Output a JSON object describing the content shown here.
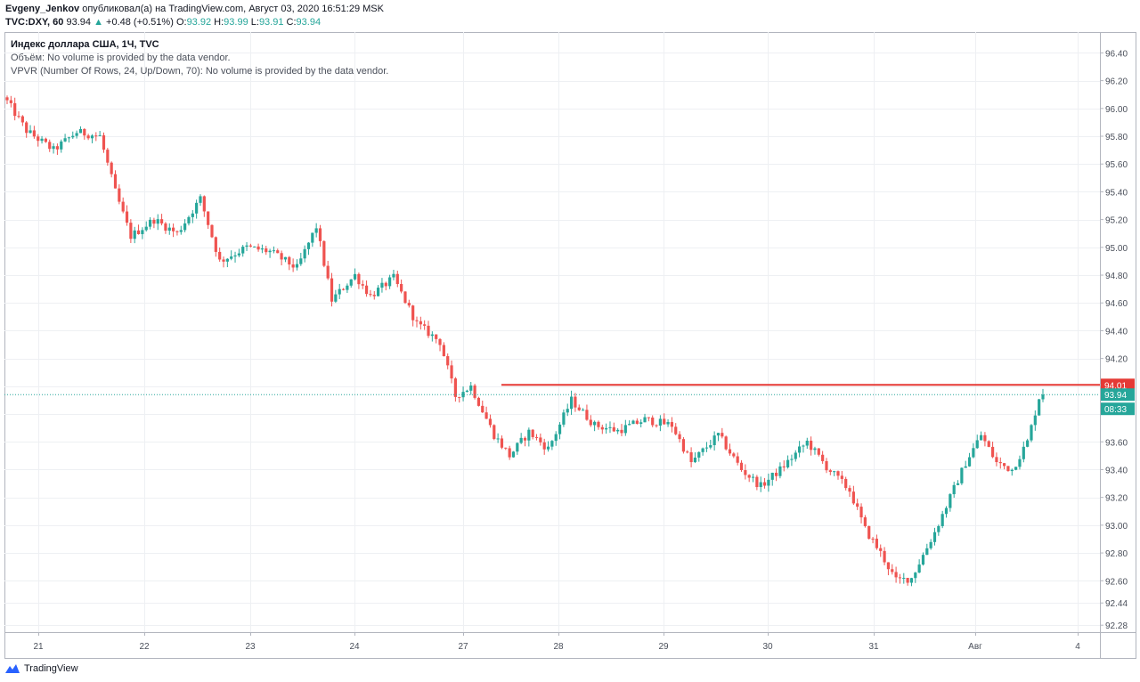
{
  "header": {
    "author": "Evgeny_Jenkov",
    "published_text": "опубликовал(а) на TradingView.com, Август 03, 2020 16:51:29 MSK",
    "symbol": "TVC:DXY, 60",
    "last": "93.94",
    "change": "+0.48 (+0.51%)",
    "o_label": "O:",
    "o_value": "93.92",
    "h_label": "H:",
    "h_value": "93.99",
    "l_label": "L:",
    "l_value": "93.91",
    "c_label": "C:",
    "c_value": "93.94"
  },
  "legend": {
    "title": "Индекс доллара США, 1Ч, TVC",
    "volume_line": "Объём: No volume is provided by the data vendor.",
    "vpvr_line": "VPVR (Number Of Rows, 24, Up/Down, 70): No volume is provided by the data vendor."
  },
  "footer": {
    "brand": "TradingView"
  },
  "colors": {
    "up": "#26a69a",
    "down": "#ef5350",
    "resistance": "#e53935",
    "price_line": "#26a69a",
    "grid": "#eef0f3",
    "axis_text": "#4a4f5a"
  },
  "chart_data": {
    "type": "candlestick",
    "y_axis": {
      "side": "right",
      "range": [
        92.23,
        96.55
      ],
      "ticks": [
        "96.40",
        "96.20",
        "96.00",
        "95.80",
        "95.60",
        "95.40",
        "95.20",
        "95.00",
        "94.80",
        "94.60",
        "94.40",
        "94.20",
        "94.01",
        "93.94",
        "93.60",
        "93.40",
        "93.20",
        "93.00",
        "92.80",
        "92.60",
        "92.44",
        "92.28"
      ],
      "grid_ticks": [
        96.4,
        96.2,
        96.0,
        95.8,
        95.6,
        95.4,
        95.2,
        95.0,
        94.8,
        94.6,
        94.4,
        94.2,
        94.0,
        93.8,
        93.6,
        93.4,
        93.2,
        93.0,
        92.8,
        92.6,
        92.44,
        92.28
      ]
    },
    "x_axis": {
      "labels": [
        "21",
        "22",
        "23",
        "24",
        "27",
        "28",
        "29",
        "30",
        "31",
        "Авг",
        "4"
      ]
    },
    "grid": true,
    "resistance": {
      "value": 94.01,
      "label": "94.01"
    },
    "last_price": {
      "value": 93.94,
      "label": "93.94",
      "countdown": "08:33"
    },
    "anchors": [
      {
        "t": 0,
        "v": 96.05
      },
      {
        "t": 5,
        "v": 95.84
      },
      {
        "t": 12,
        "v": 95.7
      },
      {
        "t": 18,
        "v": 95.83
      },
      {
        "t": 24,
        "v": 95.8
      },
      {
        "t": 28,
        "v": 95.4
      },
      {
        "t": 32,
        "v": 95.08
      },
      {
        "t": 38,
        "v": 95.2
      },
      {
        "t": 44,
        "v": 95.1
      },
      {
        "t": 50,
        "v": 95.35
      },
      {
        "t": 55,
        "v": 94.9
      },
      {
        "t": 62,
        "v": 95.0
      },
      {
        "t": 68,
        "v": 94.97
      },
      {
        "t": 75,
        "v": 94.85
      },
      {
        "t": 80,
        "v": 95.15
      },
      {
        "t": 84,
        "v": 94.62
      },
      {
        "t": 90,
        "v": 94.8
      },
      {
        "t": 94,
        "v": 94.65
      },
      {
        "t": 100,
        "v": 94.78
      },
      {
        "t": 106,
        "v": 94.45
      },
      {
        "t": 112,
        "v": 94.32
      },
      {
        "t": 116,
        "v": 93.93
      },
      {
        "t": 120,
        "v": 94.0
      },
      {
        "t": 126,
        "v": 93.65
      },
      {
        "t": 130,
        "v": 93.5
      },
      {
        "t": 135,
        "v": 93.67
      },
      {
        "t": 140,
        "v": 93.55
      },
      {
        "t": 146,
        "v": 93.9
      },
      {
        "t": 152,
        "v": 93.72
      },
      {
        "t": 158,
        "v": 93.68
      },
      {
        "t": 165,
        "v": 93.76
      },
      {
        "t": 172,
        "v": 93.72
      },
      {
        "t": 177,
        "v": 93.45
      },
      {
        "t": 184,
        "v": 93.65
      },
      {
        "t": 190,
        "v": 93.4
      },
      {
        "t": 195,
        "v": 93.28
      },
      {
        "t": 200,
        "v": 93.4
      },
      {
        "t": 207,
        "v": 93.6
      },
      {
        "t": 212,
        "v": 93.42
      },
      {
        "t": 218,
        "v": 93.25
      },
      {
        "t": 222,
        "v": 92.97
      },
      {
        "t": 226,
        "v": 92.8
      },
      {
        "t": 230,
        "v": 92.6
      },
      {
        "t": 234,
        "v": 92.62
      },
      {
        "t": 240,
        "v": 92.95
      },
      {
        "t": 244,
        "v": 93.2
      },
      {
        "t": 248,
        "v": 93.45
      },
      {
        "t": 252,
        "v": 93.65
      },
      {
        "t": 256,
        "v": 93.45
      },
      {
        "t": 260,
        "v": 93.4
      },
      {
        "t": 264,
        "v": 93.6
      },
      {
        "t": 267,
        "v": 93.92
      },
      {
        "t": 268,
        "v": 93.94
      }
    ]
  }
}
